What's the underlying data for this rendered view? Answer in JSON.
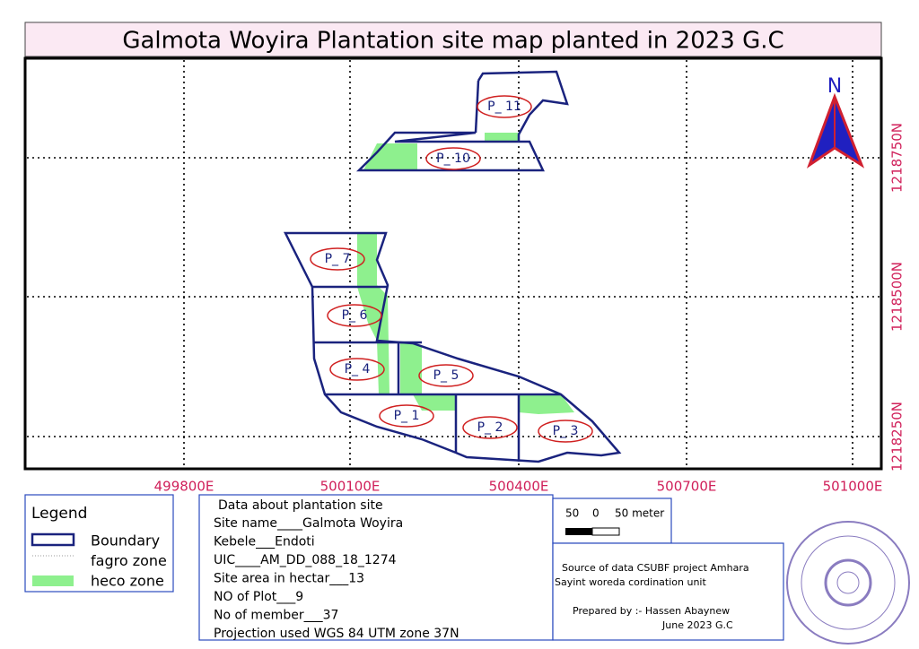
{
  "title": "Galmota Woyira Plantation site map planted in 2023 G.C",
  "north": "N",
  "x_grid_labels": [
    "499800E",
    "500100E",
    "500400E",
    "500700E",
    "501000E"
  ],
  "y_grid_labels": [
    "1218750N",
    "1218500N",
    "1218250N"
  ],
  "plots": [
    "P_ 11",
    "P_ 10",
    "P_ 7",
    "P_ 6",
    "P_ 4",
    "P_ 5",
    "P_ 1",
    "P_ 2",
    "P_ 3"
  ],
  "legend": {
    "title": "Legend",
    "items": [
      "Boundary",
      "fagro zone",
      "heco zone"
    ]
  },
  "site_data": {
    "title": "Data about plantation site",
    "lines": [
      "Site name____Galmota Woyira",
      "Kebele___Endoti",
      "UIC____AM_DD_088_18_1274",
      "Site area in hectar___13",
      "NO of Plot___9",
      "No of member___37",
      "Projection used      WGS 84 UTM zone 37N"
    ]
  },
  "scale": {
    "labels": [
      "50",
      "0",
      "50 meter"
    ]
  },
  "source": {
    "lines": [
      "Source of data CSUBF project Amhara",
      "Sayint woreda cordination unit"
    ]
  },
  "prepared": {
    "lines": [
      "Prepared by :- Hassen Abaynew",
      "June 2023 G.C"
    ]
  }
}
